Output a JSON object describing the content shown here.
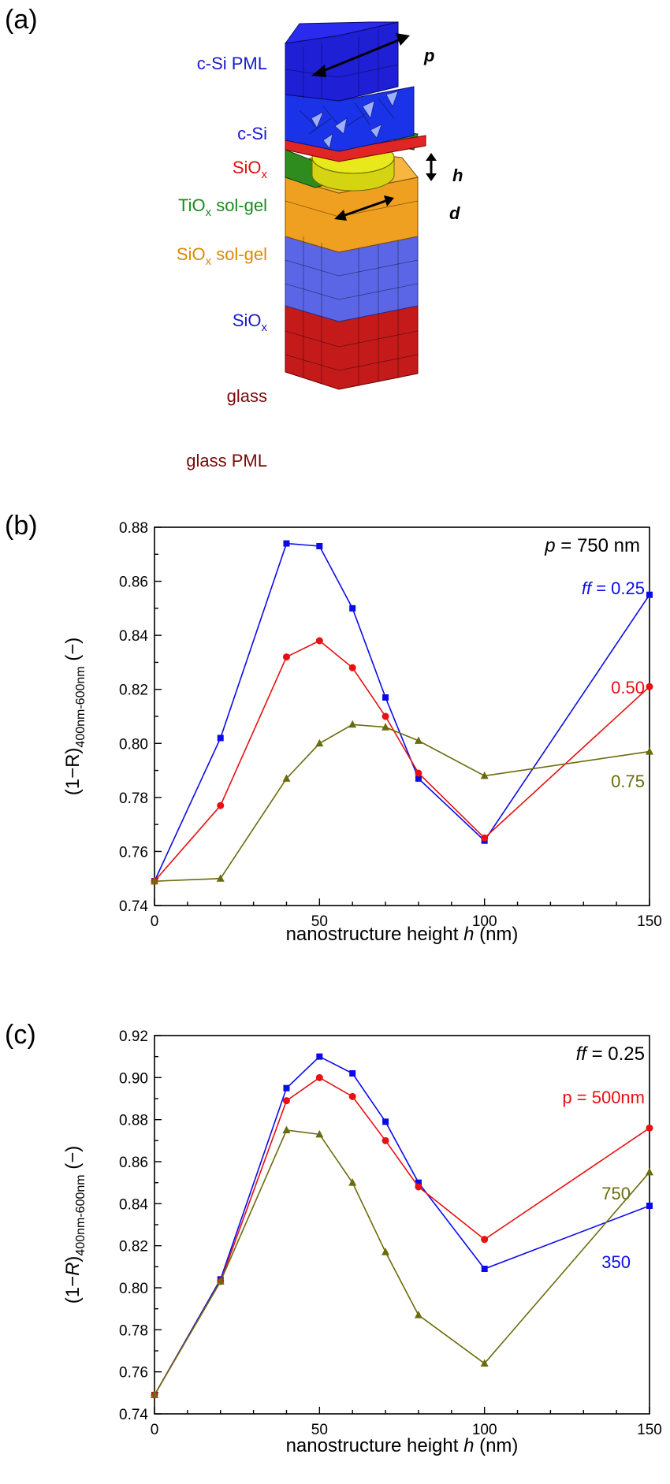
{
  "panel_a": {
    "letter": "(a)",
    "labels": {
      "csi_pml": "c-Si PML",
      "csi": "c-Si",
      "siox_top_main": "SiO",
      "siox_top_sub": "x",
      "tiox_main": "TiO",
      "tiox_sub": "x",
      "tiox_rest": " sol-gel",
      "siox_solgel_main": "SiO",
      "siox_solgel_sub": "x",
      "siox_solgel_rest": " sol-gel",
      "siox_mid_main": "SiO",
      "siox_mid_sub": "x",
      "glass": "glass",
      "glass_pml": "glass PML",
      "p": "p",
      "h": "h",
      "d": "d"
    },
    "colors": {
      "csi_pml": "#1f1fd6",
      "csi": "#1a33e8",
      "siox_top": "#e02525",
      "tiox": "#2e8b1e",
      "nano": "#e8e81a",
      "siox_solgel": "#f0a020",
      "siox_mid": "#5a66e6",
      "glass": "#cc1f1f",
      "label_blue": "#1a1acc",
      "label_red": "#e01010",
      "label_green": "#1a8a1a",
      "label_orange": "#d98a00",
      "label_darkred": "#7a0a0a"
    }
  },
  "panel_b": {
    "letter": "(b)",
    "corner_var": "p",
    "corner_rest": " = 750 nm",
    "series_labels": {
      "s0_var": "ff",
      "s0_rest": " = 0.25",
      "s1": "0.50",
      "s2": "0.75"
    },
    "xlabel_main": "nanostructure height ",
    "xlabel_var": "h",
    "xlabel_unit": " (nm)",
    "ylabel_main": "(1−R)",
    "ylabel_sub": "400nm-600nm",
    "ylabel_unit": " (−)"
  },
  "panel_c": {
    "letter": "(c)",
    "corner_var": "ff",
    "corner_rest": " = 0.25",
    "series_labels": {
      "s0": "p = 500nm",
      "s1": "750",
      "s2": "350"
    },
    "xlabel_main": "nanostructure height ",
    "xlabel_var": "h",
    "xlabel_unit": " (nm)",
    "ylabel_main": "(1−",
    "ylabel_var": "R",
    "ylabel_close": ")",
    "ylabel_sub": "400nm-600nm",
    "ylabel_unit": " (−)"
  },
  "chart_data": [
    {
      "type": "line",
      "panel": "(b)",
      "xlabel": "nanostructure height h (nm)",
      "ylabel": "(1−R)400nm-600nm (−)",
      "xlim": [
        0,
        150
      ],
      "ylim": [
        0.74,
        0.88
      ],
      "xticks": [
        0,
        50,
        100,
        150
      ],
      "yticks": [
        0.74,
        0.76,
        0.78,
        0.8,
        0.82,
        0.84,
        0.86,
        0.88
      ],
      "ytick_labels": [
        "0.74",
        "0.76",
        "0.78",
        "0.80",
        "0.82",
        "0.84",
        "0.86",
        "0.88"
      ],
      "x": [
        0,
        20,
        40,
        50,
        60,
        70,
        80,
        100,
        150
      ],
      "series": [
        {
          "name": "ff = 0.25",
          "color": "#0b0bea",
          "marker": "square",
          "values": [
            0.749,
            0.802,
            0.874,
            0.873,
            0.85,
            0.817,
            0.787,
            0.764,
            0.855
          ]
        },
        {
          "name": "0.50",
          "color": "#e81010",
          "marker": "circle",
          "values": [
            0.749,
            0.777,
            0.832,
            0.838,
            0.828,
            0.81,
            0.789,
            0.765,
            0.821
          ]
        },
        {
          "name": "0.75",
          "color": "#6b6b0d",
          "marker": "triangle",
          "values": [
            0.749,
            0.75,
            0.787,
            0.8,
            0.807,
            0.806,
            0.801,
            0.788,
            0.797
          ]
        }
      ],
      "annotation": "p = 750 nm"
    },
    {
      "type": "line",
      "panel": "(c)",
      "xlabel": "nanostructure height h (nm)",
      "ylabel": "(1−R)400nm-600nm (−)",
      "xlim": [
        0,
        150
      ],
      "ylim": [
        0.74,
        0.92
      ],
      "xticks": [
        0,
        50,
        100,
        150
      ],
      "yticks": [
        0.74,
        0.76,
        0.78,
        0.8,
        0.82,
        0.84,
        0.86,
        0.88,
        0.9,
        0.92
      ],
      "ytick_labels": [
        "0.74",
        "0.76",
        "0.78",
        "0.80",
        "0.82",
        "0.84",
        "0.86",
        "0.88",
        "0.90",
        "0.92"
      ],
      "x": [
        0,
        20,
        40,
        50,
        60,
        70,
        80,
        100,
        150
      ],
      "series": [
        {
          "name": "350",
          "color": "#0b0bea",
          "marker": "square",
          "values": [
            0.749,
            0.804,
            0.895,
            0.91,
            0.902,
            0.879,
            0.85,
            0.809,
            0.839
          ]
        },
        {
          "name": "p = 500nm",
          "color": "#e81010",
          "marker": "circle",
          "values": [
            0.749,
            0.803,
            0.889,
            0.9,
            0.891,
            0.87,
            0.848,
            0.823,
            0.876
          ]
        },
        {
          "name": "750",
          "color": "#6b6b0d",
          "marker": "triangle",
          "values": [
            0.749,
            0.803,
            0.875,
            0.873,
            0.85,
            0.817,
            0.787,
            0.764,
            0.855
          ]
        }
      ],
      "annotation": "ff = 0.25"
    }
  ]
}
